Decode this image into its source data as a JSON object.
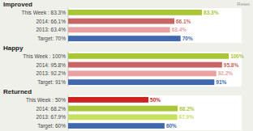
{
  "chart_data": [
    {
      "type": "bar",
      "orientation": "horizontal",
      "title": "Improved",
      "categories": [
        "This Week : 83.3%",
        "2014: 66.1%",
        "2013: 63.4%",
        "Target: 70%"
      ],
      "values": [
        83.3,
        66.1,
        63.4,
        70.0
      ],
      "value_labels": [
        "83.3%",
        "66.1%",
        "63.4%",
        "70%"
      ],
      "colors": [
        "#a8c736",
        "#c86464",
        "#e8a0a0",
        "#4169b0"
      ],
      "xlim": [
        0,
        108
      ],
      "data_labels": true,
      "tick_labels": "y",
      "grid": false,
      "annotations": [
        "Reset"
      ]
    },
    {
      "type": "bar",
      "orientation": "horizontal",
      "title": "Happy",
      "categories": [
        "This Week : 100%",
        "2014: 95.8%",
        "2013: 92.2%",
        "Target: 91%"
      ],
      "values": [
        100.0,
        95.8,
        92.2,
        91.0
      ],
      "value_labels": [
        "100%",
        "95.8%",
        "92.2%",
        "91%"
      ],
      "colors": [
        "#a8c736",
        "#c86464",
        "#e8a0a0",
        "#4169b0"
      ],
      "xlim": [
        0,
        108
      ],
      "data_labels": true,
      "tick_labels": "y",
      "grid": false
    },
    {
      "type": "bar",
      "orientation": "horizontal",
      "title": "Returned",
      "categories": [
        "This Week : 50%",
        "2014: 68.2%",
        "2013: 67.9%",
        "Target: 60%"
      ],
      "values": [
        50.0,
        68.2,
        67.9,
        60.0
      ],
      "value_labels": [
        "50%",
        "68.2%",
        "67.9%",
        "60%"
      ],
      "colors": [
        "#cc2222",
        "#a8c736",
        "#c8e060",
        "#4169b0"
      ],
      "xlim": [
        0,
        108
      ],
      "data_labels": true,
      "tick_labels": "y",
      "grid": false
    }
  ]
}
